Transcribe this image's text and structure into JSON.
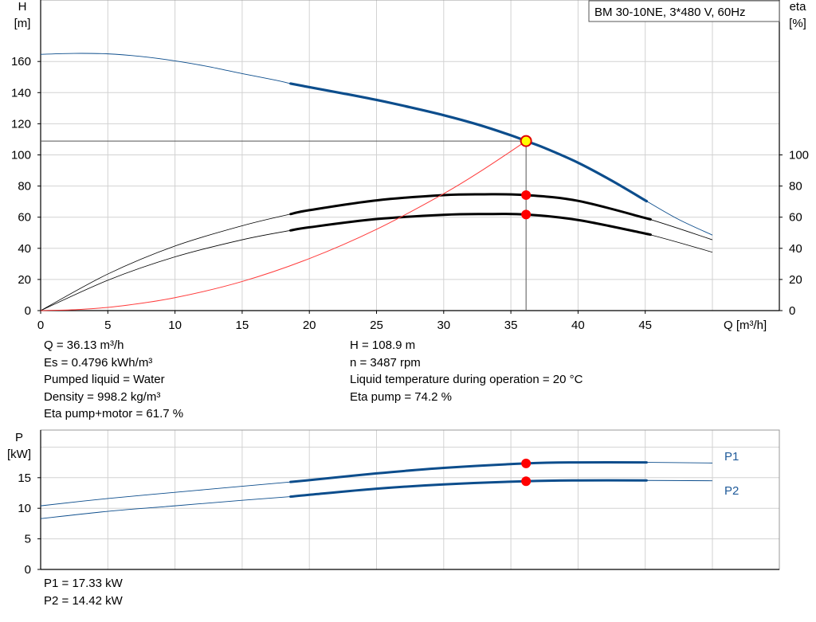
{
  "chart_data": [
    {
      "type": "line",
      "title": "BM 30-10NE, 3*480 V, 60Hz",
      "xlabel": "Q [m³/h]",
      "ylabel_left": [
        "H",
        "[m]"
      ],
      "ylabel_right": [
        "eta",
        "[%]"
      ],
      "xlim": [
        0,
        50
      ],
      "ylim_left": [
        0,
        180
      ],
      "ylim_right": [
        0,
        180
      ],
      "x_ticks": [
        0,
        5,
        10,
        15,
        20,
        25,
        30,
        35,
        40,
        45
      ],
      "y_ticks_left": [
        0,
        20,
        40,
        60,
        80,
        100,
        120,
        140,
        160
      ],
      "y_ticks_right": [
        0,
        20,
        40,
        60,
        80,
        100
      ],
      "grid": true,
      "series": [
        {
          "role": "head",
          "color": "#0c4d8c",
          "x": [
            0,
            2.5,
            5,
            7.5,
            10,
            12.5,
            15,
            17.5,
            18.6,
            20,
            22.5,
            25,
            27.5,
            30,
            32.5,
            35,
            36.13,
            37.5,
            40,
            42.5,
            45.1,
            47.5,
            50
          ],
          "y": [
            164.6,
            165.2,
            164.9,
            163.2,
            160.4,
            156.7,
            152.2,
            148.0,
            145.8,
            143.5,
            139.5,
            135.3,
            130.6,
            125.5,
            119.6,
            112.6,
            108.9,
            104.5,
            95.0,
            83.5,
            70.3,
            58.5,
            48.5
          ],
          "bold_range": [
            18.6,
            45.1
          ]
        },
        {
          "role": "eta_pump",
          "color": "#000000",
          "axis": "right",
          "x": [
            0,
            5,
            10,
            15,
            18.6,
            20,
            25,
            30,
            33,
            36.13,
            40,
            45,
            50
          ],
          "y": [
            0,
            23.5,
            41.5,
            54.5,
            62.0,
            64.5,
            70.8,
            74.2,
            74.7,
            74.2,
            70.5,
            59.5,
            45.5
          ],
          "bold_range": [
            18.6,
            45.1
          ]
        },
        {
          "role": "eta_pump_motor",
          "color": "#000000",
          "axis": "right",
          "x": [
            0,
            5,
            10,
            15,
            18.6,
            20,
            25,
            30,
            33,
            36.13,
            40,
            45,
            50
          ],
          "y": [
            0,
            19.5,
            34.5,
            45.5,
            51.5,
            53.5,
            58.8,
            61.5,
            62.0,
            61.7,
            58.2,
            49.5,
            37.5
          ],
          "bold_range": [
            18.6,
            45.1
          ]
        },
        {
          "role": "system",
          "color": "#ff3b3b",
          "x": [
            0,
            3,
            6,
            10,
            15,
            20,
            25,
            30,
            33,
            36.13
          ],
          "y": [
            0,
            0.8,
            3.0,
            8.3,
            18.7,
            33.4,
            52.2,
            75.1,
            90.9,
            108.9
          ]
        }
      ],
      "operating_points": [
        {
          "x": 36.13,
          "y": 108.9,
          "style": "duty"
        },
        {
          "x": 36.13,
          "y": 74.2,
          "style": "point"
        },
        {
          "x": 36.13,
          "y": 61.7,
          "style": "point"
        }
      ],
      "crosshair": {
        "x": 36.13,
        "y": 108.9
      }
    },
    {
      "type": "line",
      "title": "",
      "xlabel": "",
      "ylabel": [
        "P",
        "[kW]"
      ],
      "xlim": [
        0,
        50
      ],
      "ylim": [
        0,
        20
      ],
      "y_ticks": [
        0,
        5,
        10,
        15
      ],
      "grid": true,
      "series": [
        {
          "name": "P1",
          "color": "#0c4d8c",
          "x": [
            0,
            5,
            10,
            15,
            18.6,
            20,
            25,
            30,
            36.13,
            40,
            45.1,
            50
          ],
          "y": [
            10.4,
            11.6,
            12.6,
            13.6,
            14.3,
            14.6,
            15.7,
            16.6,
            17.33,
            17.5,
            17.5,
            17.4
          ],
          "bold_range": [
            18.6,
            45.1
          ]
        },
        {
          "name": "P2",
          "color": "#0c4d8c",
          "x": [
            0,
            5,
            10,
            15,
            18.6,
            20,
            25,
            30,
            36.13,
            40,
            45.1,
            50
          ],
          "y": [
            8.3,
            9.5,
            10.4,
            11.3,
            11.9,
            12.2,
            13.2,
            13.9,
            14.42,
            14.55,
            14.55,
            14.5
          ],
          "bold_range": [
            18.6,
            45.1
          ]
        }
      ],
      "operating_points": [
        {
          "x": 36.13,
          "y": 17.33
        },
        {
          "x": 36.13,
          "y": 14.42
        }
      ]
    }
  ],
  "info_left": [
    "Q = 36.13 m³/h",
    "Es = 0.4796 kWh/m³",
    "Pumped liquid = Water",
    "Density = 998.2 kg/m³",
    "Eta pump+motor = 61.7 %"
  ],
  "info_right": [
    "H = 108.9 m",
    "n = 3487 rpm",
    "Liquid temperature during operation = 20 °C",
    "Eta pump = 74.2 %"
  ],
  "info_power": [
    "P1 = 17.33 kW",
    "P2 = 14.42 kW"
  ]
}
